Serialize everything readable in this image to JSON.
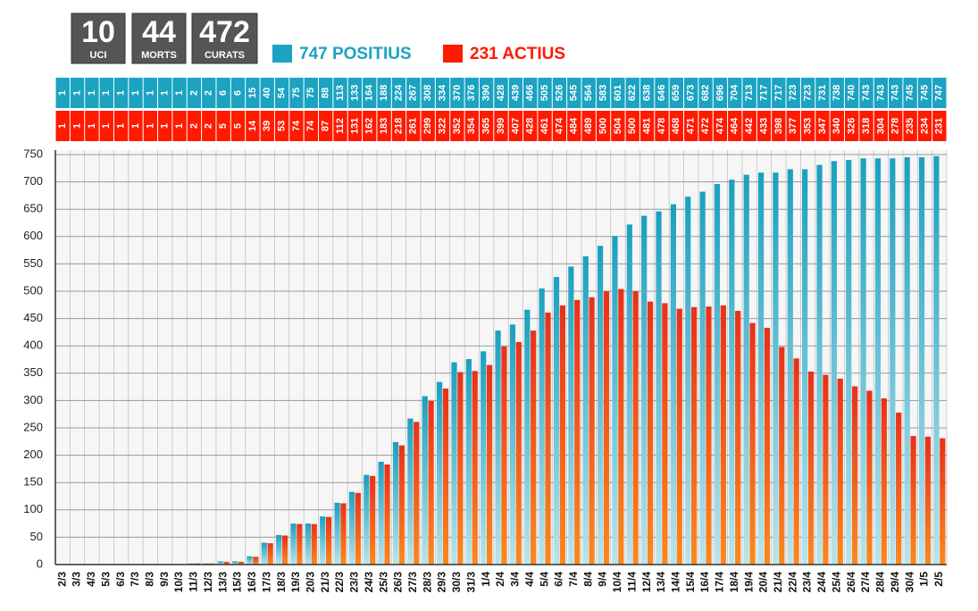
{
  "stats": [
    {
      "value": "10",
      "label": "UCI"
    },
    {
      "value": "44",
      "label": "MORTS"
    },
    {
      "value": "472",
      "label": "CURATS"
    }
  ],
  "chart_data": {
    "type": "bar",
    "categories": [
      "2/3",
      "3/3",
      "4/3",
      "5/3",
      "6/3",
      "7/3",
      "8/3",
      "9/3",
      "10/3",
      "11/3",
      "12/3",
      "13/3",
      "15/3",
      "16/3",
      "17/3",
      "18/3",
      "19/3",
      "20/3",
      "21/3",
      "22/3",
      "23/3",
      "24/3",
      "25/3",
      "26/3",
      "27/3",
      "28/3",
      "29/3",
      "30/3",
      "31/3",
      "1/4",
      "2/4",
      "3/4",
      "4/4",
      "5/4",
      "6/4",
      "7/4",
      "8/4",
      "9/4",
      "10/4",
      "11/4",
      "12/4",
      "13/4",
      "14/4",
      "15/4",
      "16/4",
      "17/4",
      "18/4",
      "19/4",
      "20/4",
      "21/4",
      "22/4",
      "23/4",
      "24/4",
      "25/4",
      "26/4",
      "27/4",
      "28/4",
      "29/4",
      "30/4",
      "1/5",
      "2/5"
    ],
    "series": [
      {
        "name": "747 POSITIUS",
        "color": "#1ba3c1",
        "values": [
          1,
          1,
          1,
          1,
          1,
          1,
          1,
          1,
          1,
          2,
          2,
          6,
          6,
          15,
          40,
          54,
          75,
          75,
          88,
          113,
          133,
          164,
          188,
          224,
          267,
          308,
          334,
          370,
          376,
          390,
          428,
          439,
          466,
          505,
          526,
          545,
          564,
          583,
          601,
          622,
          638,
          646,
          659,
          673,
          682,
          696,
          704,
          713,
          717,
          717,
          723,
          723,
          731,
          738,
          740,
          743,
          743,
          743,
          745,
          745,
          747
        ]
      },
      {
        "name": "231 ACTIUS",
        "color": "#ff1a00",
        "values": [
          1,
          1,
          1,
          1,
          1,
          1,
          1,
          1,
          1,
          2,
          2,
          5,
          5,
          14,
          39,
          53,
          74,
          74,
          87,
          112,
          131,
          162,
          183,
          218,
          261,
          299,
          322,
          352,
          354,
          365,
          399,
          407,
          428,
          461,
          474,
          484,
          489,
          500,
          504,
          500,
          481,
          478,
          468,
          471,
          472,
          474,
          464,
          442,
          433,
          398,
          377,
          353,
          347,
          340,
          326,
          318,
          304,
          278,
          235,
          234,
          231
        ]
      }
    ],
    "ylim": [
      0,
      750
    ],
    "yticks": [
      0,
      50,
      100,
      150,
      200,
      250,
      300,
      350,
      400,
      450,
      500,
      550,
      600,
      650,
      700,
      750
    ],
    "grid": true
  }
}
